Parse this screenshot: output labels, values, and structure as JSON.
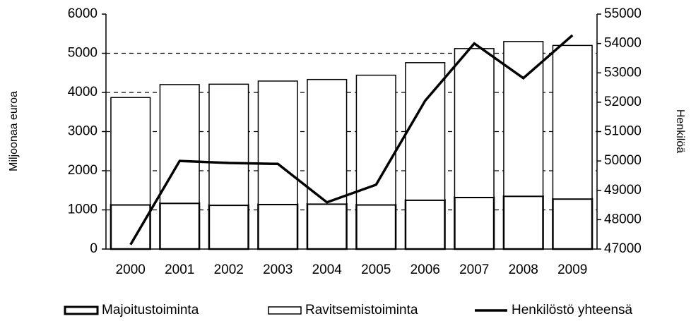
{
  "chart_data": {
    "type": "bar",
    "categories": [
      "2000",
      "2001",
      "2002",
      "2003",
      "2004",
      "2005",
      "2006",
      "2007",
      "2008",
      "2009"
    ],
    "stacked": true,
    "series": [
      {
        "name": "Majoitustoiminta",
        "color": "#ffffff",
        "values": [
          1130,
          1170,
          1120,
          1140,
          1150,
          1130,
          1250,
          1320,
          1350,
          1280
        ]
      },
      {
        "name": "Ravitsemistoiminta",
        "color": "#ffffff",
        "values": [
          2740,
          3030,
          3090,
          3150,
          3180,
          3310,
          3510,
          3800,
          3950,
          3920
        ]
      },
      {
        "name": "Henkilöstö yhteensä",
        "type": "line",
        "axis": "y2",
        "color": "#000000",
        "values": [
          47150,
          50000,
          49930,
          49900,
          48590,
          49190,
          52050,
          54000,
          52820,
          54280
        ]
      }
    ],
    "ylabel": "Miljoonaa euroa",
    "y2label": "Henkilöä",
    "ylim": [
      0,
      6000
    ],
    "yticks": [
      0,
      1000,
      2000,
      3000,
      4000,
      5000,
      6000
    ],
    "y2lim": [
      47000,
      55000
    ],
    "y2ticks": [
      47000,
      48000,
      49000,
      50000,
      51000,
      52000,
      53000,
      54000,
      55000
    ],
    "grid": true,
    "legend": "bottom"
  }
}
